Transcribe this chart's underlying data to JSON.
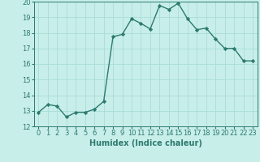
{
  "x": [
    0,
    1,
    2,
    3,
    4,
    5,
    6,
    7,
    8,
    9,
    10,
    11,
    12,
    13,
    14,
    15,
    16,
    17,
    18,
    19,
    20,
    21,
    22,
    23
  ],
  "y": [
    12.9,
    13.4,
    13.3,
    12.6,
    12.9,
    12.9,
    13.1,
    13.6,
    17.75,
    17.9,
    18.9,
    18.6,
    18.25,
    19.75,
    19.5,
    19.9,
    18.9,
    18.2,
    18.3,
    17.6,
    17.0,
    17.0,
    16.2,
    16.2
  ],
  "line_color": "#2d7a6e",
  "marker": "D",
  "marker_size": 2.2,
  "bg_color": "#c8eeea",
  "grid_color": "#a8ddd7",
  "xlabel": "Humidex (Indice chaleur)",
  "ylim": [
    12,
    20
  ],
  "xlim": [
    -0.5,
    23.5
  ],
  "yticks": [
    12,
    13,
    14,
    15,
    16,
    17,
    18,
    19,
    20
  ],
  "xticks": [
    0,
    1,
    2,
    3,
    4,
    5,
    6,
    7,
    8,
    9,
    10,
    11,
    12,
    13,
    14,
    15,
    16,
    17,
    18,
    19,
    20,
    21,
    22,
    23
  ],
  "xlabel_fontsize": 7,
  "tick_fontsize": 6,
  "line_width": 1.0
}
